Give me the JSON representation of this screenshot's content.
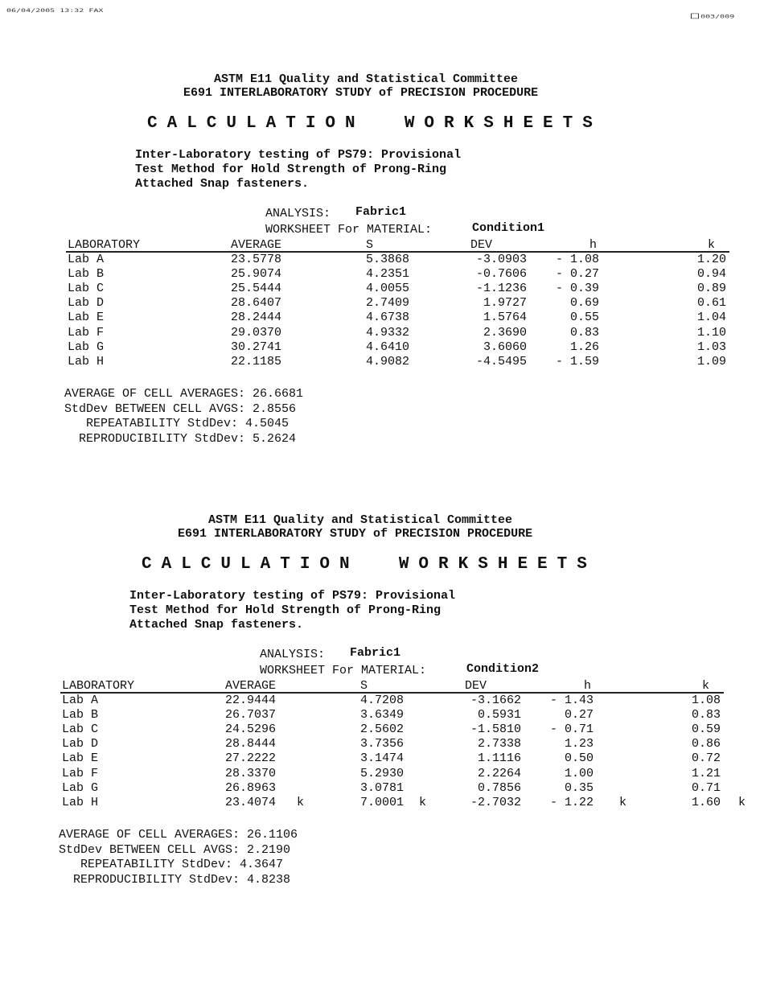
{
  "fax_header": {
    "left": "06/04/2005 13:32 FAX",
    "right": "003/009",
    "fax_icon": "fax-icon"
  },
  "worksheets": [
    {
      "committee": "ASTM E11 Quality and Statistical Committee",
      "procedure": "E691 INTERLABORATORY STUDY of PRECISION PROCEDURE",
      "banner": "CALCULATION  WORKSHEETS",
      "description": [
        "Inter-Laboratory testing of PS79: Provisional",
        "Test Method for Hold Strength of Prong-Ring",
        "Attached Snap fasteners."
      ],
      "analysis_label": "ANALYSIS:",
      "analysis_value": "Fabric1",
      "material_label": "WORKSHEET For MATERIAL:",
      "material_value": "Condition1",
      "columns": [
        "LABORATORY",
        "AVERAGE",
        "S",
        "DEV",
        "h",
        "k"
      ],
      "rows": [
        {
          "lab": "Lab A",
          "average": "23.5778",
          "s": "5.3868",
          "dev": "-3.0903",
          "h": "- 1.08",
          "k": "1.20"
        },
        {
          "lab": "Lab B",
          "average": "25.9074",
          "s": "4.2351",
          "dev": "-0.7606",
          "h": "- 0.27",
          "k": "0.94"
        },
        {
          "lab": "Lab C",
          "average": "25.5444",
          "s": "4.0055",
          "dev": "-1.1236",
          "h": "- 0.39",
          "k": "0.89"
        },
        {
          "lab": "Lab D",
          "average": "28.6407",
          "s": "2.7409",
          "dev": "1.9727",
          "h": "0.69",
          "k": "0.61"
        },
        {
          "lab": "Lab E",
          "average": "28.2444",
          "s": "4.6738",
          "dev": "1.5764",
          "h": "0.55",
          "k": "1.04"
        },
        {
          "lab": "Lab F",
          "average": "29.0370",
          "s": "4.9332",
          "dev": "2.3690",
          "h": "0.83",
          "k": "1.10"
        },
        {
          "lab": "Lab G",
          "average": "30.2741",
          "s": "4.6410",
          "dev": "3.6060",
          "h": "1.26",
          "k": "1.03"
        },
        {
          "lab": "Lab H",
          "average": "22.1185",
          "s": "4.9082",
          "dev": "-4.5495",
          "h": "- 1.59",
          "k": "1.09"
        }
      ],
      "summary": [
        "AVERAGE OF CELL AVERAGES: 26.6681",
        "StdDev BETWEEN CELL AVGS: 2.8556",
        "   REPEATABILITY StdDev: 4.5045",
        "  REPRODUCIBILITY StdDev: 5.2624"
      ]
    },
    {
      "committee": "ASTM E11 Quality and Statistical Committee",
      "procedure": "E691 INTERLABORATORY STUDY of PRECISION PROCEDURE",
      "banner": "CALCULATION  WORKSHEETS",
      "description": [
        "Inter-Laboratory testing of PS79: Provisional",
        "Test Method for Hold Strength of Prong-Ring",
        "Attached Snap fasteners."
      ],
      "analysis_label": "ANALYSIS:",
      "analysis_value": "Fabric1",
      "material_label": "WORKSHEET For MATERIAL:",
      "material_value": "Condition2",
      "columns": [
        "LABORATORY",
        "AVERAGE",
        "S",
        "DEV",
        "h",
        "k"
      ],
      "rows": [
        {
          "lab": "Lab A",
          "average": "22.9444",
          "s": "4.7208",
          "dev": "-3.1662",
          "h": "- 1.43",
          "k": "1.08"
        },
        {
          "lab": "Lab B",
          "average": "26.7037",
          "s": "3.6349",
          "dev": "0.5931",
          "h": "0.27",
          "k": "0.83"
        },
        {
          "lab": "Lab C",
          "average": "24.5296",
          "s": "2.5602",
          "dev": "-1.5810",
          "h": "- 0.71",
          "k": "0.59"
        },
        {
          "lab": "Lab D",
          "average": "28.8444",
          "s": "3.7356",
          "dev": "2.7338",
          "h": "1.23",
          "k": "0.86"
        },
        {
          "lab": "Lab E",
          "average": "27.2222",
          "s": "3.1474",
          "dev": "1.1116",
          "h": "0.50",
          "k": "0.72"
        },
        {
          "lab": "Lab F",
          "average": "28.3370",
          "s": "5.2930",
          "dev": "2.2264",
          "h": "1.00",
          "k": "1.21"
        },
        {
          "lab": "Lab G",
          "average": "26.8963",
          "s": "3.0781",
          "dev": "0.7856",
          "h": "0.35",
          "k": "0.71"
        },
        {
          "lab": "Lab H",
          "average": "23.4074",
          "s": "7.0001",
          "dev": "-2.7032",
          "h": "- 1.22",
          "k": "1.60",
          "flags": {
            "average": "k",
            "s": "k",
            "h": "k",
            "k": "k"
          }
        }
      ],
      "summary": [
        "AVERAGE OF CELL AVERAGES: 26.1106",
        "StdDev BETWEEN CELL AVGS: 2.2190",
        "   REPEATABILITY StdDev: 4.3647",
        "  REPRODUCIBILITY StdDev: 4.8238"
      ]
    }
  ]
}
